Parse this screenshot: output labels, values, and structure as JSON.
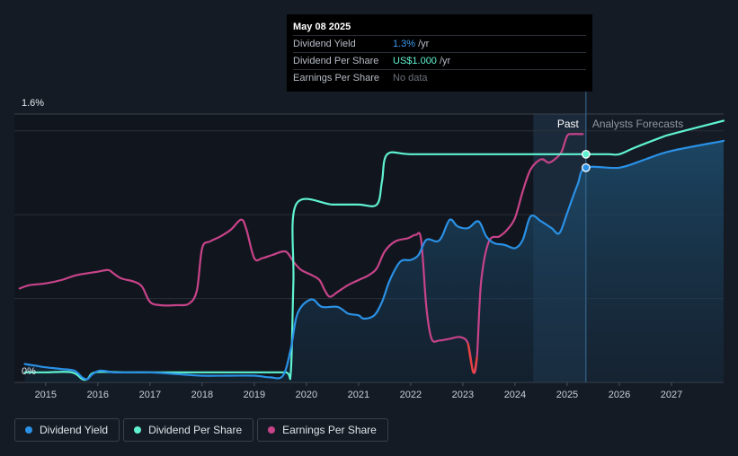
{
  "chart_data": {
    "type": "line",
    "title": "",
    "ylim": [
      0,
      1.6
    ],
    "y_ticks": [
      {
        "value": 1.6,
        "label": "1.6%"
      },
      {
        "value": 0,
        "label": "0%"
      }
    ],
    "gridlines": [
      0.5,
      1.0,
      1.5
    ],
    "xlim": [
      2014.4,
      2028.0
    ],
    "x_ticks": [
      "2015",
      "2016",
      "2017",
      "2018",
      "2019",
      "2020",
      "2021",
      "2022",
      "2023",
      "2024",
      "2025",
      "2026",
      "2027"
    ],
    "regions": {
      "past_label": "Past",
      "forecast_label": "Analysts Forecasts",
      "shade_start": 2024.35,
      "present": 2025.36
    },
    "series": [
      {
        "name": "Dividend Yield",
        "color": "#2a91e6",
        "points": [
          [
            2014.6,
            0.11
          ],
          [
            2014.8,
            0.1
          ],
          [
            2015.0,
            0.09
          ],
          [
            2015.3,
            0.08
          ],
          [
            2015.55,
            0.07
          ],
          [
            2015.7,
            0.03
          ],
          [
            2015.8,
            0.02
          ],
          [
            2015.9,
            0.05
          ],
          [
            2016.05,
            0.07
          ],
          [
            2016.3,
            0.06
          ],
          [
            2016.6,
            0.06
          ],
          [
            2017.0,
            0.06
          ],
          [
            2017.5,
            0.05
          ],
          [
            2018.0,
            0.04
          ],
          [
            2018.5,
            0.04
          ],
          [
            2019.0,
            0.04
          ],
          [
            2019.3,
            0.03
          ],
          [
            2019.55,
            0.04
          ],
          [
            2019.7,
            0.2
          ],
          [
            2019.8,
            0.38
          ],
          [
            2019.9,
            0.45
          ],
          [
            2020.05,
            0.49
          ],
          [
            2020.15,
            0.49
          ],
          [
            2020.3,
            0.45
          ],
          [
            2020.6,
            0.45
          ],
          [
            2020.8,
            0.41
          ],
          [
            2021.0,
            0.4
          ],
          [
            2021.1,
            0.38
          ],
          [
            2021.3,
            0.4
          ],
          [
            2021.45,
            0.48
          ],
          [
            2021.6,
            0.61
          ],
          [
            2021.8,
            0.72
          ],
          [
            2022.0,
            0.73
          ],
          [
            2022.15,
            0.76
          ],
          [
            2022.3,
            0.85
          ],
          [
            2022.5,
            0.84
          ],
          [
            2022.6,
            0.87
          ],
          [
            2022.75,
            0.97
          ],
          [
            2022.9,
            0.93
          ],
          [
            2023.1,
            0.92
          ],
          [
            2023.3,
            0.96
          ],
          [
            2023.45,
            0.87
          ],
          [
            2023.6,
            0.83
          ],
          [
            2023.8,
            0.82
          ],
          [
            2024.0,
            0.8
          ],
          [
            2024.15,
            0.85
          ],
          [
            2024.3,
            0.99
          ],
          [
            2024.5,
            0.96
          ],
          [
            2024.7,
            0.92
          ],
          [
            2024.85,
            0.89
          ],
          [
            2025.0,
            1.01
          ],
          [
            2025.2,
            1.18
          ],
          [
            2025.36,
            1.28
          ],
          [
            2026.0,
            1.28
          ],
          [
            2026.5,
            1.33
          ],
          [
            2027.0,
            1.38
          ],
          [
            2028.0,
            1.44
          ]
        ]
      },
      {
        "name": "Dividend Per Share",
        "color": "#5ff2d1",
        "points": [
          [
            2014.6,
            0.06
          ],
          [
            2015.0,
            0.06
          ],
          [
            2015.5,
            0.06
          ],
          [
            2015.7,
            0.02
          ],
          [
            2015.8,
            0.02
          ],
          [
            2015.95,
            0.06
          ],
          [
            2016.5,
            0.06
          ],
          [
            2017.0,
            0.06
          ],
          [
            2018.0,
            0.06
          ],
          [
            2019.0,
            0.06
          ],
          [
            2019.6,
            0.06
          ],
          [
            2019.7,
            0.06
          ],
          [
            2019.75,
            0.6
          ],
          [
            2019.8,
            1.06
          ],
          [
            2020.5,
            1.06
          ],
          [
            2021.0,
            1.06
          ],
          [
            2021.35,
            1.06
          ],
          [
            2021.45,
            1.2
          ],
          [
            2021.55,
            1.36
          ],
          [
            2022.0,
            1.36
          ],
          [
            2023.0,
            1.36
          ],
          [
            2024.0,
            1.36
          ],
          [
            2025.0,
            1.36
          ],
          [
            2025.36,
            1.36
          ],
          [
            2025.8,
            1.36
          ],
          [
            2026.0,
            1.36
          ],
          [
            2026.3,
            1.4
          ],
          [
            2026.8,
            1.46
          ],
          [
            2027.0,
            1.48
          ],
          [
            2028.0,
            1.56
          ]
        ]
      },
      {
        "name": "Earnings Per Share",
        "color": "#c8438a",
        "negative_color": "#e8423f",
        "points": [
          [
            2014.5,
            0.56
          ],
          [
            2014.7,
            0.58
          ],
          [
            2015.0,
            0.59
          ],
          [
            2015.3,
            0.61
          ],
          [
            2015.6,
            0.64
          ],
          [
            2016.0,
            0.66
          ],
          [
            2016.2,
            0.67
          ],
          [
            2016.3,
            0.65
          ],
          [
            2016.45,
            0.62
          ],
          [
            2016.7,
            0.6
          ],
          [
            2016.85,
            0.57
          ],
          [
            2017.0,
            0.48
          ],
          [
            2017.2,
            0.46
          ],
          [
            2017.5,
            0.46
          ],
          [
            2017.75,
            0.47
          ],
          [
            2017.9,
            0.55
          ],
          [
            2018.0,
            0.8
          ],
          [
            2018.15,
            0.84
          ],
          [
            2018.35,
            0.87
          ],
          [
            2018.55,
            0.91
          ],
          [
            2018.75,
            0.97
          ],
          [
            2018.85,
            0.91
          ],
          [
            2019.0,
            0.74
          ],
          [
            2019.15,
            0.74
          ],
          [
            2019.35,
            0.76
          ],
          [
            2019.6,
            0.78
          ],
          [
            2019.75,
            0.72
          ],
          [
            2019.9,
            0.67
          ],
          [
            2020.1,
            0.64
          ],
          [
            2020.25,
            0.61
          ],
          [
            2020.35,
            0.55
          ],
          [
            2020.45,
            0.51
          ],
          [
            2020.6,
            0.54
          ],
          [
            2020.8,
            0.58
          ],
          [
            2021.0,
            0.61
          ],
          [
            2021.2,
            0.64
          ],
          [
            2021.35,
            0.68
          ],
          [
            2021.5,
            0.78
          ],
          [
            2021.7,
            0.84
          ],
          [
            2021.95,
            0.86
          ],
          [
            2022.1,
            0.88
          ],
          [
            2022.2,
            0.85
          ],
          [
            2022.3,
            0.45
          ],
          [
            2022.4,
            0.26
          ],
          [
            2022.55,
            0.25
          ],
          [
            2022.75,
            0.26
          ],
          [
            2022.95,
            0.27
          ],
          [
            2023.1,
            0.23
          ],
          [
            2023.2,
            0.06
          ],
          [
            2023.27,
            0.15
          ],
          [
            2023.35,
            0.6
          ],
          [
            2023.5,
            0.84
          ],
          [
            2023.7,
            0.87
          ],
          [
            2023.85,
            0.91
          ],
          [
            2024.0,
            0.98
          ],
          [
            2024.15,
            1.14
          ],
          [
            2024.3,
            1.27
          ],
          [
            2024.5,
            1.33
          ],
          [
            2024.65,
            1.31
          ],
          [
            2024.8,
            1.34
          ],
          [
            2024.9,
            1.38
          ],
          [
            2025.0,
            1.47
          ],
          [
            2025.1,
            1.48
          ],
          [
            2025.3,
            1.48
          ]
        ]
      }
    ]
  },
  "tooltip": {
    "date": "May 08 2025",
    "rows": [
      {
        "label": "Dividend Yield",
        "value": "1.3%",
        "unit": "/yr"
      },
      {
        "label": "Dividend Per Share",
        "value": "US$1.000",
        "unit": "/yr"
      },
      {
        "label": "Earnings Per Share",
        "value": "No data"
      }
    ]
  },
  "legend": [
    {
      "label": "Dividend Yield",
      "color": "#2a91e6"
    },
    {
      "label": "Dividend Per Share",
      "color": "#5ff2d1"
    },
    {
      "label": "Earnings Per Share",
      "color": "#c8438a"
    }
  ]
}
